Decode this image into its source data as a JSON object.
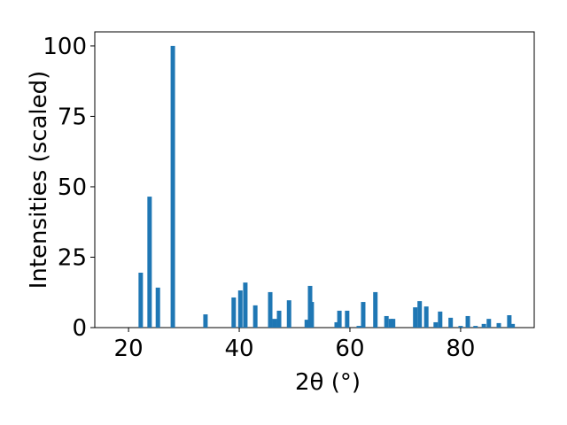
{
  "chart_data": {
    "type": "bar",
    "x_label": "2θ (°)",
    "y_label": "Intensities (scaled)",
    "x": [
      22.2,
      23.8,
      25.3,
      28.0,
      33.9,
      39.0,
      40.2,
      41.1,
      42.9,
      45.6,
      46.4,
      47.2,
      49.0,
      52.2,
      52.8,
      53.1,
      57.6,
      58.1,
      59.5,
      61.6,
      62.4,
      64.6,
      66.6,
      67.4,
      67.8,
      71.8,
      72.6,
      73.8,
      75.5,
      76.3,
      78.2,
      80.0,
      81.3,
      82.7,
      84.2,
      85.1,
      86.9,
      88.8,
      89.4
    ],
    "values": [
      19.5,
      46.5,
      14.2,
      100,
      4.7,
      10.7,
      13.2,
      16,
      7.9,
      12.6,
      3.1,
      6,
      9.7,
      2.8,
      14.8,
      9.1,
      1.9,
      6,
      6,
      0.6,
      9.1,
      12.6,
      4.1,
      3.1,
      3.1,
      7.2,
      9.4,
      7.5,
      1.9,
      5.7,
      3.5,
      0.6,
      4.1,
      0.6,
      1.3,
      3.1,
      1.6,
      4.4,
      1.3
    ],
    "color": "#1f77b4",
    "xlim": [
      13.9,
      93.3
    ],
    "xticks": [
      20,
      40,
      60,
      80
    ],
    "ylim": [
      0,
      105
    ],
    "yticks": [
      0,
      25,
      50,
      75,
      100
    ]
  }
}
